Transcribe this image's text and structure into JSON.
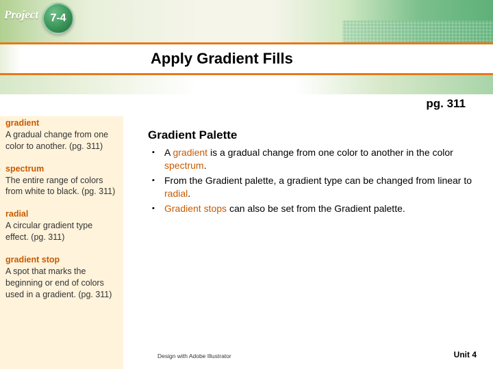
{
  "project_label": "Project",
  "chapter_number": "7-4",
  "title": "Apply Gradient Fills",
  "page_reference": "pg. 311",
  "sidebar_terms": [
    {
      "term": "gradient",
      "definition": "A gradual change from one color to another. (pg. 311)"
    },
    {
      "term": "spectrum",
      "definition": "The entire range of colors from white to black. (pg. 311)"
    },
    {
      "term": "radial",
      "definition": "A circular gradient type effect. (pg. 311)"
    },
    {
      "term": "gradient stop",
      "definition": "A spot that marks the beginning or end of colors used in a gradient. (pg. 311)"
    }
  ],
  "section_heading": "Gradient Palette",
  "bullets": [
    {
      "pre": "A ",
      "kw1": "gradient",
      "mid": " is a gradual change from one color to another in the color ",
      "kw2": "spectrum",
      "post": "."
    },
    {
      "pre": "From the Gradient palette, a gradient type can be changed from linear to ",
      "kw1": "radial",
      "mid": "",
      "kw2": "",
      "post": "."
    },
    {
      "pre": "",
      "kw1": "Gradient stops",
      "mid": " can also be set from the Gradient palette.",
      "kw2": "",
      "post": ""
    }
  ],
  "footer_left": "Design with Adobe Illustrator",
  "footer_right": "Unit 4",
  "colors": {
    "accent_orange": "#e67817",
    "term_orange": "#c75a00",
    "sidebar_bg": "#fff3db",
    "circle_green": "#3a9458"
  }
}
